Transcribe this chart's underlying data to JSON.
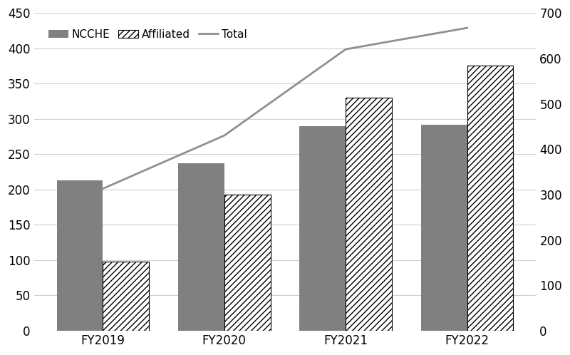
{
  "categories": [
    "FY2019",
    "FY2020",
    "FY2021",
    "FY2022"
  ],
  "ncche": [
    213,
    237,
    290,
    292
  ],
  "affiliated": [
    98,
    193,
    330,
    375
  ],
  "total": [
    313,
    430,
    620,
    667
  ],
  "ncche_color": "#808080",
  "affiliated_hatch": "////",
  "total_color": "#909090",
  "left_ylim": [
    0,
    450
  ],
  "right_ylim": [
    0,
    700
  ],
  "left_yticks": [
    0,
    50,
    100,
    150,
    200,
    250,
    300,
    350,
    400,
    450
  ],
  "right_yticks": [
    0,
    100,
    200,
    300,
    400,
    500,
    600,
    700
  ],
  "background_color": "#ffffff",
  "bar_width": 0.38,
  "tick_fontsize": 12,
  "label_fontsize": 12,
  "legend_fontsize": 11
}
